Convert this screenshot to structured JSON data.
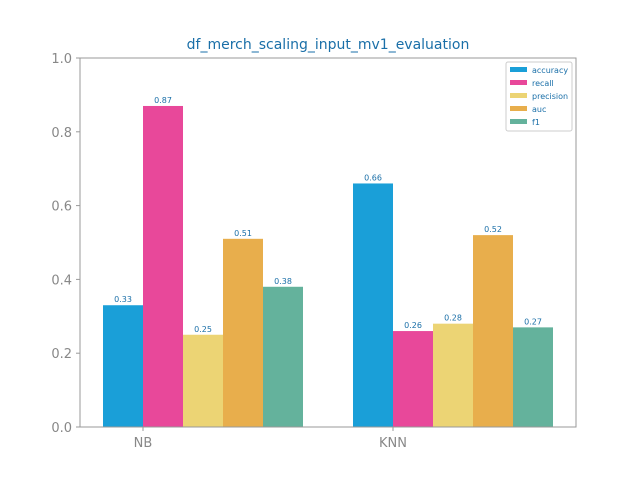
{
  "chart_data": {
    "type": "bar",
    "title": "df_merch_scaling_input_mv1_evaluation",
    "xlabel": "",
    "ylabel": "",
    "categories": [
      "NB",
      "KNN"
    ],
    "ylim": [
      0,
      1.0
    ],
    "yticks": [
      "0.0",
      "0.2",
      "0.4",
      "0.6",
      "0.8",
      "1.0"
    ],
    "grid": false,
    "legend_position": "top-right",
    "series": [
      {
        "name": "accuracy",
        "values": [
          0.33,
          0.66
        ],
        "labels": [
          "0.33",
          "0.66"
        ],
        "color": "#1a9fd8"
      },
      {
        "name": "recall",
        "values": [
          0.87,
          0.26
        ],
        "labels": [
          "0.87",
          "0.26"
        ],
        "color": "#e8489a"
      },
      {
        "name": "precision",
        "values": [
          0.25,
          0.28
        ],
        "labels": [
          "0.25",
          "0.28"
        ],
        "color": "#ecd474"
      },
      {
        "name": "auc",
        "values": [
          0.51,
          0.52
        ],
        "labels": [
          "0.51",
          "0.52"
        ],
        "color": "#e8ae4c"
      },
      {
        "name": "f1",
        "values": [
          0.38,
          0.27
        ],
        "labels": [
          "0.38",
          "0.27"
        ],
        "color": "#64b29c"
      }
    ],
    "colors": {
      "title": "#1a6fa8",
      "label": "#1a6fa8",
      "axis": "#999999",
      "tick_text": "#888888"
    }
  }
}
